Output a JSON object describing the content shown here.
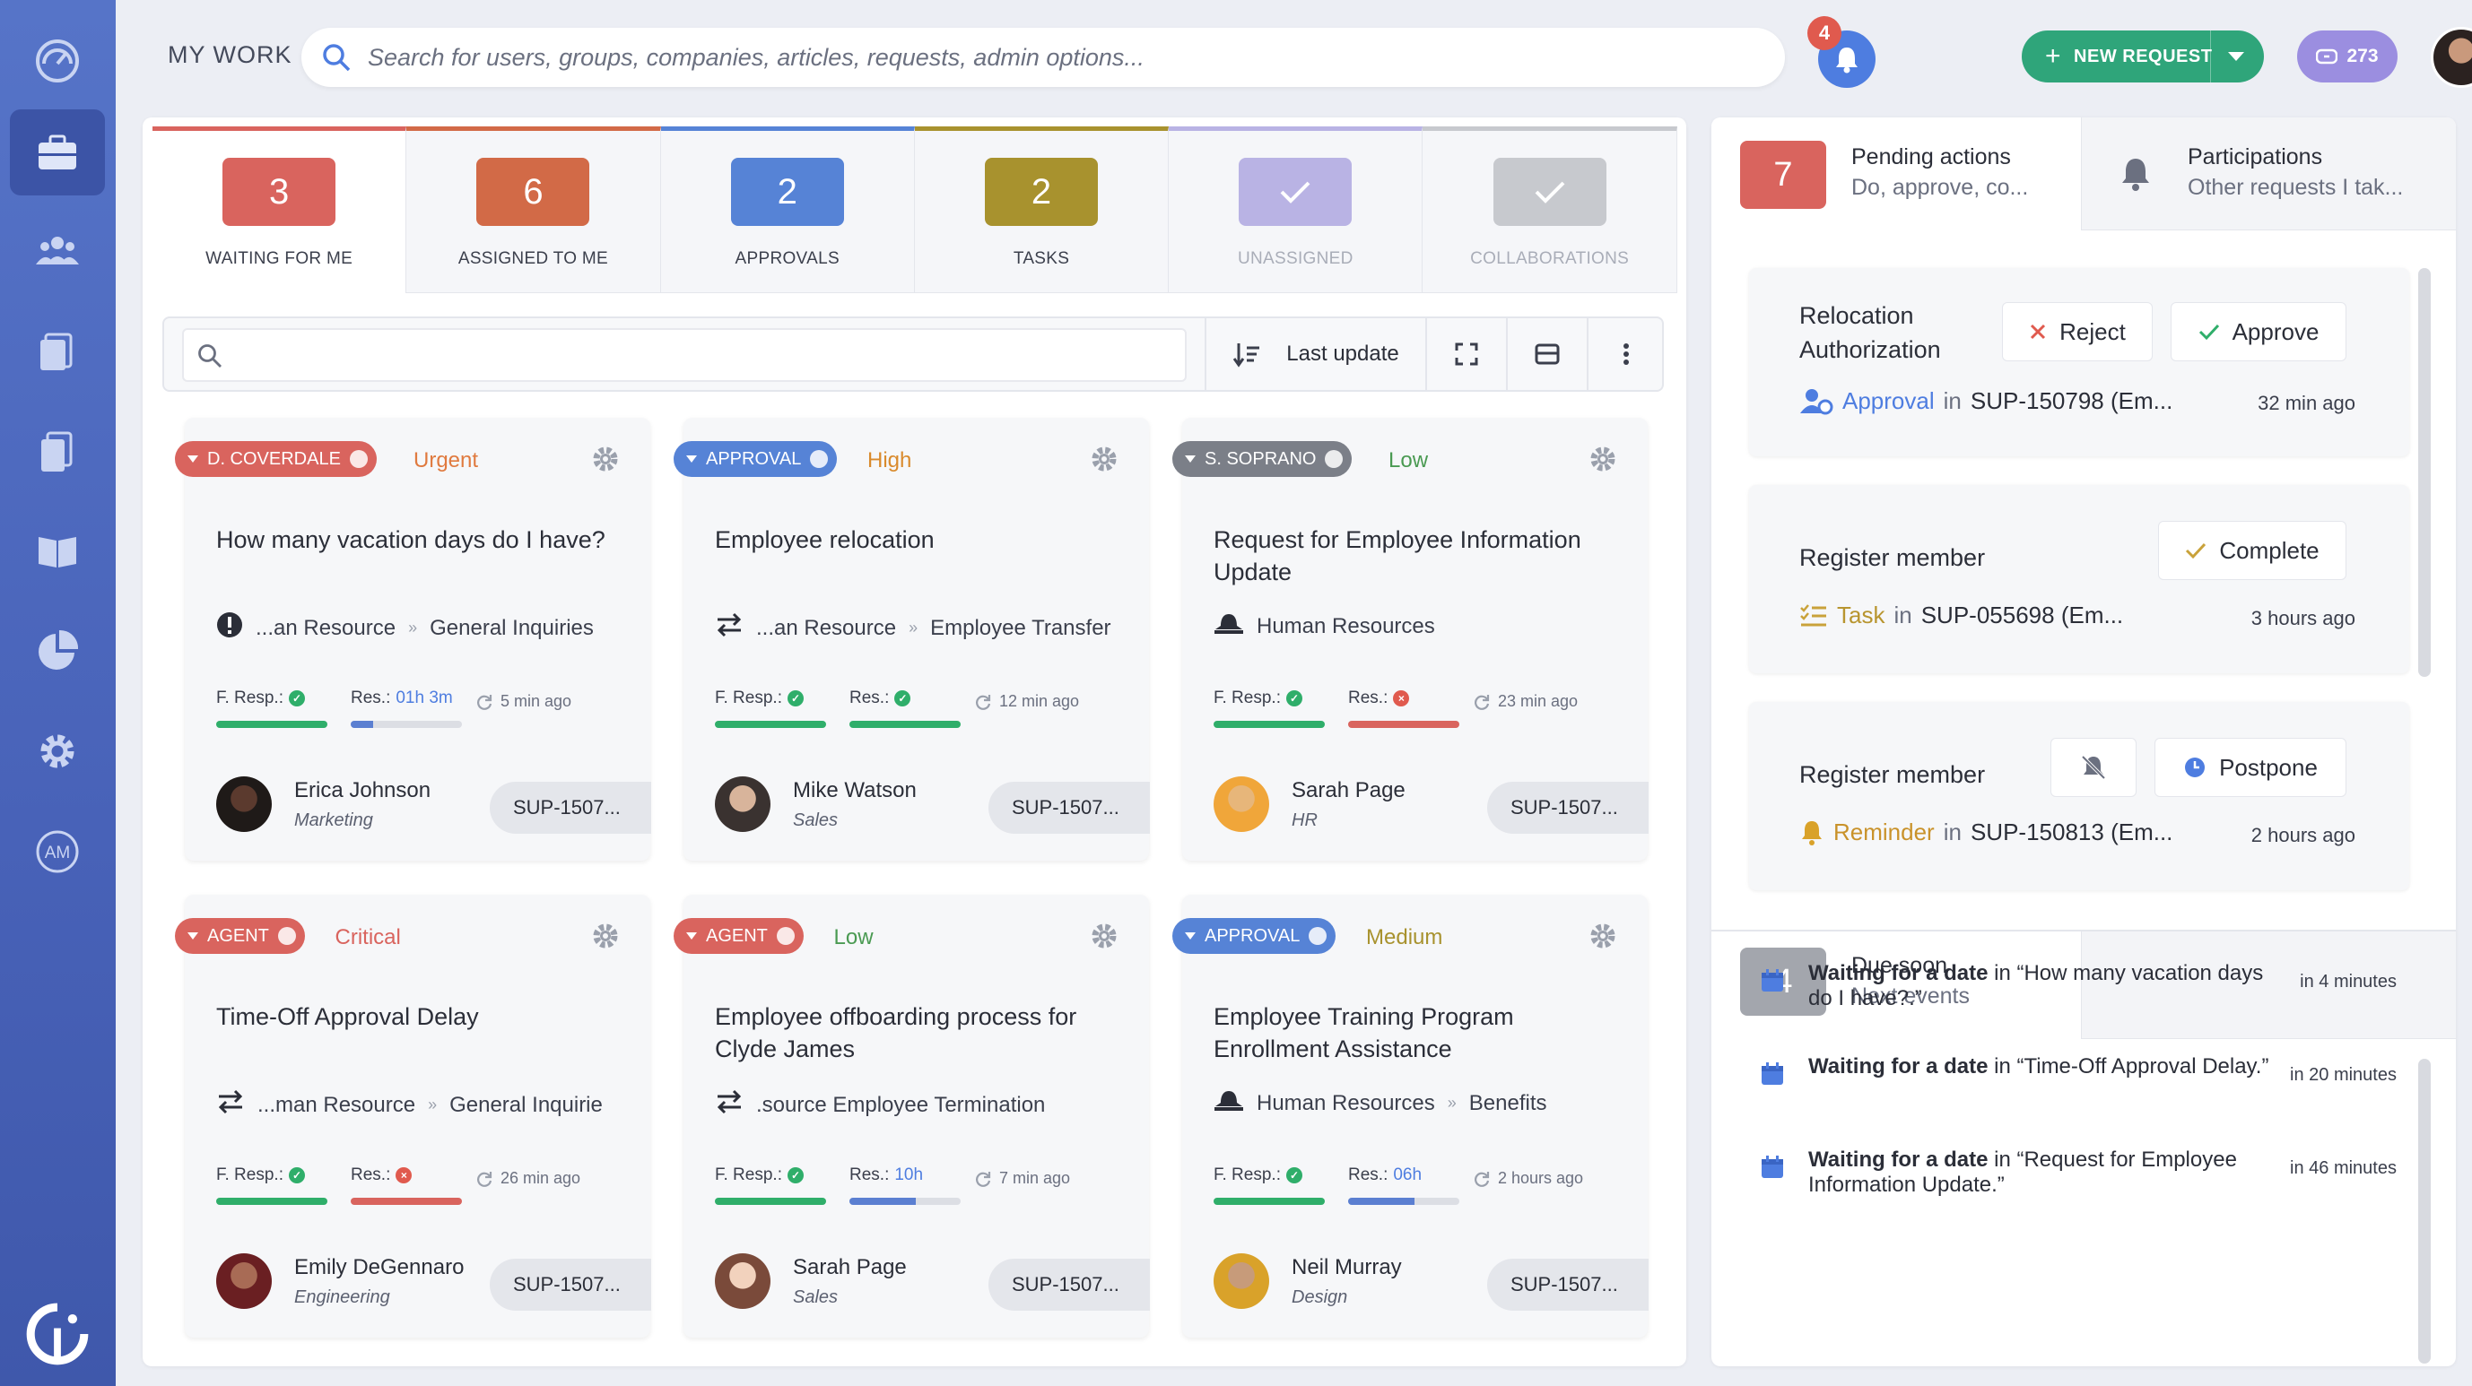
{
  "header": {
    "title": "MY WORK",
    "search_placeholder": "Search for users, groups, companies, articles, requests, admin options...",
    "notif_count": "4",
    "new_request_label": "NEW REQUEST",
    "credits": "273"
  },
  "sidebar": {
    "items": [
      "dashboard-icon",
      "briefcase-icon",
      "users-icon",
      "documents-icon",
      "clipboard-icon",
      "book-icon",
      "pie-chart-icon",
      "gear-icon",
      "am-icon"
    ]
  },
  "tabs": [
    {
      "count": "3",
      "label": "WAITING FOR ME",
      "color": "#d9645e"
    },
    {
      "count": "6",
      "label": "ASSIGNED TO ME",
      "color": "#d26a47"
    },
    {
      "count": "2",
      "label": "APPROVALS",
      "color": "#5683d6"
    },
    {
      "count": "2",
      "label": "TASKS",
      "color": "#a8922e"
    },
    {
      "count": "",
      "label": "UNASSIGNED",
      "color": "#b9b3e4"
    },
    {
      "count": "",
      "label": "COLLABORATIONS",
      "color": "#c7c9ce"
    }
  ],
  "toolbar": {
    "sort_label": "Last update"
  },
  "cards": [
    {
      "pill": "D. COVERDALE",
      "pill_color": "#d9645e",
      "priority": "Urgent",
      "prio_color": "#e07a3f",
      "title": "How many vacation days do I have?",
      "cat_icon": "exclamation-icon",
      "cat1": "...an Resource",
      "cat2": "General Inquiries",
      "f_resp": "F. Resp.:",
      "res": "Res.:",
      "res_value": "01h 3m",
      "ago": "5 min ago",
      "name": "Erica Johnson",
      "dept": "Marketing",
      "sup": "SUP-1507...",
      "fbar": 1.0,
      "fcolor": "#2fae6a",
      "rbar": 0.2,
      "rcolor": "#5b7fd1",
      "fdot": "ok",
      "rdot": "none"
    },
    {
      "pill": "APPROVAL",
      "pill_color": "#5683d6",
      "priority": "High",
      "prio_color": "#d98a2c",
      "title": "Employee relocation",
      "cat_icon": "transfer-icon",
      "cat1": "...an Resource",
      "cat2": "Employee Transfer",
      "f_resp": "F. Resp.:",
      "res": "Res.:",
      "res_value": "",
      "ago": "12 min ago",
      "name": "Mike Watson",
      "dept": "Sales",
      "sup": "SUP-1507...",
      "fbar": 1.0,
      "fcolor": "#2fae6a",
      "rbar": 1.0,
      "rcolor": "#2fae6a",
      "fdot": "ok",
      "rdot": "ok"
    },
    {
      "pill": "S. SOPRANO",
      "pill_color": "#7b7f88",
      "priority": "Low",
      "prio_color": "#4a9a52",
      "title": "Request for Employee Information Update",
      "cat_icon": "hat-icon",
      "cat1": "Human Resources",
      "cat2": "",
      "f_resp": "F. Resp.:",
      "res": "Res.:",
      "res_value": "",
      "ago": "23 min ago",
      "name": "Sarah Page",
      "dept": "HR",
      "sup": "SUP-1507...",
      "fbar": 1.0,
      "fcolor": "#2fae6a",
      "rbar": 1.0,
      "rcolor": "#d9645e",
      "fdot": "ok",
      "rdot": "bad"
    },
    {
      "pill": "AGENT",
      "pill_color": "#d9645e",
      "priority": "Critical",
      "prio_color": "#d9645e",
      "title": "Time-Off Approval Delay",
      "cat_icon": "transfer-icon",
      "cat1": "...man Resource",
      "cat2": "General Inquirie",
      "f_resp": "F. Resp.:",
      "res": "Res.:",
      "res_value": "",
      "ago": "26 min ago",
      "name": "Emily DeGennaro",
      "dept": "Engineering",
      "sup": "SUP-1507...",
      "fbar": 1.0,
      "fcolor": "#2fae6a",
      "rbar": 1.0,
      "rcolor": "#d9645e",
      "fdot": "ok",
      "rdot": "bad"
    },
    {
      "pill": "AGENT",
      "pill_color": "#d9645e",
      "priority": "Low",
      "prio_color": "#4a9a52",
      "title": "Employee offboarding process for Clyde James",
      "cat_icon": "transfer-icon",
      "cat1": ".source Employee Termination",
      "cat2": "",
      "f_resp": "F. Resp.:",
      "res": "Res.:",
      "res_value": "10h",
      "ago": "7 min ago",
      "name": "Sarah Page",
      "dept": "Sales",
      "sup": "SUP-1507...",
      "fbar": 1.0,
      "fcolor": "#2fae6a",
      "rbar": 0.6,
      "rcolor": "#5b7fd1",
      "fdot": "ok",
      "rdot": "none"
    },
    {
      "pill": "APPROVAL",
      "pill_color": "#5683d6",
      "priority": "Medium",
      "prio_color": "#a8922e",
      "title": "Employee Training Program Enrollment Assistance",
      "cat_icon": "hat-icon",
      "cat1": "Human Resources",
      "cat2": "Benefits",
      "f_resp": "F. Resp.:",
      "res": "Res.:",
      "res_value": "06h",
      "ago": "2 hours ago",
      "name": "Neil Murray",
      "dept": "Design",
      "sup": "SUP-1507...",
      "fbar": 1.0,
      "fcolor": "#2fae6a",
      "rbar": 0.6,
      "rcolor": "#5b7fd1",
      "fdot": "ok",
      "rdot": "none"
    }
  ],
  "right": {
    "pending": {
      "count": "7",
      "title": "Pending actions",
      "sub": "Do, approve, co..."
    },
    "participations": {
      "title": "Participations",
      "sub": "Other requests I tak..."
    },
    "actions": [
      {
        "title": "Relocation Authorization",
        "btn1": "Reject",
        "btn2": "Approve",
        "type": "Approval",
        "in": "in",
        "ref": "SUP-150798 (Em...",
        "time": "32 min ago"
      },
      {
        "title": "Register member",
        "btn1": "",
        "btn2": "Complete",
        "type": "Task",
        "in": "in",
        "ref": "SUP-055698 (Em...",
        "time": "3 hours ago"
      },
      {
        "title": "Register member",
        "btn1": "",
        "btn2": "Postpone",
        "type": "Reminder",
        "in": "in",
        "ref": "SUP-150813 (Em...",
        "time": "2 hours ago"
      }
    ],
    "due": {
      "count": "4",
      "title": "Due soon",
      "sub": "Next events"
    },
    "events": [
      {
        "bold": "Waiting for a date",
        "rest": " in “How many vacation days do I have?.”",
        "when": "in 4 minutes"
      },
      {
        "bold": "Waiting for a date",
        "rest": " in “Time-Off Approval Delay.”",
        "when": "in 20 minutes"
      },
      {
        "bold": "Waiting for a date",
        "rest": " in “Request for Employee Information Update.”",
        "when": "in 46 minutes"
      }
    ]
  }
}
